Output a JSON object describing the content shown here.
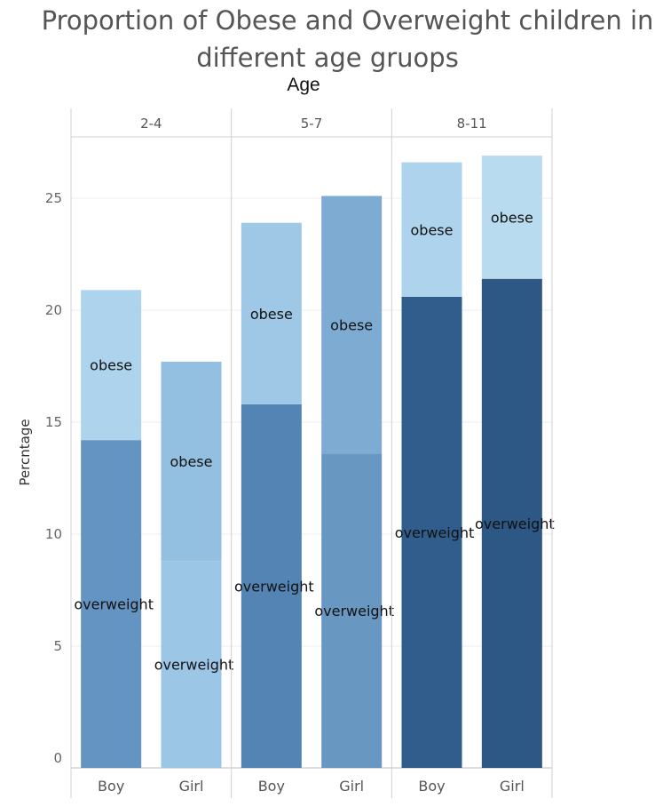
{
  "chart_data": {
    "type": "bar",
    "stacked": true,
    "title": "Proportion of Obese and Overweight children in different age gruops",
    "title_lines": [
      "Proportion of Obese and Overweight children in",
      "different age gruops"
    ],
    "column_header": "Age",
    "ylabel": "Percntage",
    "ylim": [
      0,
      28
    ],
    "yticks": [
      0,
      5,
      10,
      15,
      20,
      25
    ],
    "grid": true,
    "panels": [
      {
        "label": "2-4",
        "bars": [
          {
            "category": "Boy",
            "overweight": 14.2,
            "obese": 6.7,
            "overweight_color": "#6495c2",
            "obese_color": "#aed3ed"
          },
          {
            "category": "Girl",
            "overweight": 8.8,
            "obese": 8.9,
            "overweight_color": "#9cc6e6",
            "obese_color": "#93bfe0"
          }
        ]
      },
      {
        "label": "5-7",
        "bars": [
          {
            "category": "Boy",
            "overweight": 15.8,
            "obese": 8.1,
            "overweight_color": "#5484b4",
            "obese_color": "#9ec8e6"
          },
          {
            "category": "Girl",
            "overweight": 13.6,
            "obese": 11.5,
            "overweight_color": "#6898c2",
            "obese_color": "#7eabd2"
          }
        ]
      },
      {
        "label": "8-11",
        "bars": [
          {
            "category": "Boy",
            "overweight": 20.6,
            "obese": 6.0,
            "overweight_color": "#315d8c",
            "obese_color": "#aed3ed"
          },
          {
            "category": "Girl",
            "overweight": 21.4,
            "obese": 5.5,
            "overweight_color": "#2d5785",
            "obese_color": "#b8dbf0"
          }
        ]
      }
    ],
    "segment_labels": {
      "overweight": "overweight",
      "obese": "obese"
    }
  }
}
